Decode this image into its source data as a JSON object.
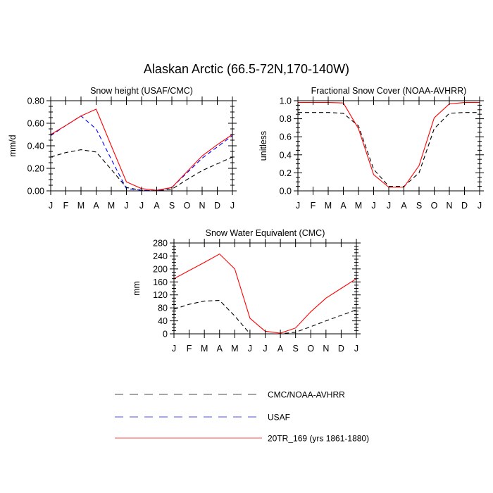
{
  "figure": {
    "title": "Alaskan Arctic (66.5-72N,170-140W)"
  },
  "colors": {
    "cmc_avhrr": "#000000",
    "usaf": "#0000ff",
    "model": "#ff0000",
    "background": "#ffffff"
  },
  "legend": {
    "placement": "bottom-center",
    "items": [
      {
        "label": "CMC/NOAA-AVHRR",
        "series_key": "cmc_avhrr",
        "dash": "dashed"
      },
      {
        "label": "USAF",
        "series_key": "usaf",
        "dash": "dashed"
      },
      {
        "label": "20TR_169 (yrs 1861-1880)",
        "series_key": "model",
        "dash": "solid"
      }
    ]
  },
  "chart_data": [
    {
      "id": "snow_height",
      "type": "line",
      "title": "Snow height (USAF/CMC)",
      "xlabel": "",
      "ylabel": "mm/d",
      "categories": [
        "J",
        "F",
        "M",
        "A",
        "M",
        "J",
        "J",
        "A",
        "S",
        "O",
        "N",
        "D",
        "J"
      ],
      "ylim": [
        0,
        0.8
      ],
      "yticks": [
        0.0,
        0.2,
        0.4,
        0.6,
        0.8
      ],
      "ytick_labels": [
        "0.00",
        "0.20",
        "0.40",
        "0.60",
        "0.80"
      ],
      "grid": false,
      "series": [
        {
          "key": "cmc_avhrr",
          "values": [
            0.3,
            0.34,
            0.365,
            0.345,
            0.19,
            0.03,
            0.005,
            0.0,
            0.015,
            0.1,
            0.18,
            0.24,
            0.3
          ]
        },
        {
          "key": "usaf",
          "values": [
            0.49,
            0.58,
            0.665,
            0.55,
            0.28,
            0.02,
            0.005,
            0.0,
            0.03,
            0.16,
            0.29,
            0.39,
            0.49
          ]
        },
        {
          "key": "model",
          "values": [
            0.5,
            0.58,
            0.665,
            0.725,
            0.4,
            0.08,
            0.02,
            0.005,
            0.03,
            0.17,
            0.31,
            0.41,
            0.5
          ]
        }
      ]
    },
    {
      "id": "snow_cover",
      "type": "line",
      "title": "Fractional Snow Cover (NOAA-AVHRR)",
      "xlabel": "",
      "ylabel": "unitless",
      "categories": [
        "J",
        "F",
        "M",
        "A",
        "M",
        "J",
        "J",
        "A",
        "S",
        "O",
        "N",
        "D",
        "J"
      ],
      "ylim": [
        0,
        1.0
      ],
      "yticks": [
        0.0,
        0.2,
        0.4,
        0.6,
        0.8,
        1.0
      ],
      "ytick_labels": [
        "0.0",
        "0.2",
        "0.4",
        "0.6",
        "0.8",
        "1.0"
      ],
      "grid": false,
      "series": [
        {
          "key": "cmc_avhrr",
          "values": [
            0.87,
            0.87,
            0.87,
            0.86,
            0.72,
            0.24,
            0.05,
            0.05,
            0.2,
            0.69,
            0.86,
            0.87,
            0.87
          ]
        },
        {
          "key": "model",
          "values": [
            0.98,
            0.98,
            0.98,
            0.975,
            0.69,
            0.18,
            0.04,
            0.04,
            0.28,
            0.81,
            0.965,
            0.98,
            0.98
          ]
        }
      ]
    },
    {
      "id": "swe",
      "type": "line",
      "title": "Snow Water Equivalent (CMC)",
      "xlabel": "",
      "ylabel": "mm",
      "categories": [
        "J",
        "F",
        "M",
        "A",
        "M",
        "J",
        "J",
        "A",
        "S",
        "O",
        "N",
        "D",
        "J"
      ],
      "ylim": [
        0,
        280
      ],
      "yticks": [
        0,
        40,
        80,
        120,
        160,
        200,
        240,
        280
      ],
      "ytick_labels": [
        "0",
        "40",
        "80",
        "120",
        "160",
        "200",
        "240",
        "280"
      ],
      "grid": false,
      "series": [
        {
          "key": "cmc_avhrr",
          "values": [
            76,
            91,
            101,
            103,
            55,
            0,
            0,
            0,
            5,
            22,
            40,
            57,
            74
          ]
        },
        {
          "key": "model",
          "values": [
            170,
            195,
            220,
            246,
            200,
            48,
            8,
            2,
            18,
            68,
            110,
            140,
            170
          ]
        }
      ]
    }
  ]
}
